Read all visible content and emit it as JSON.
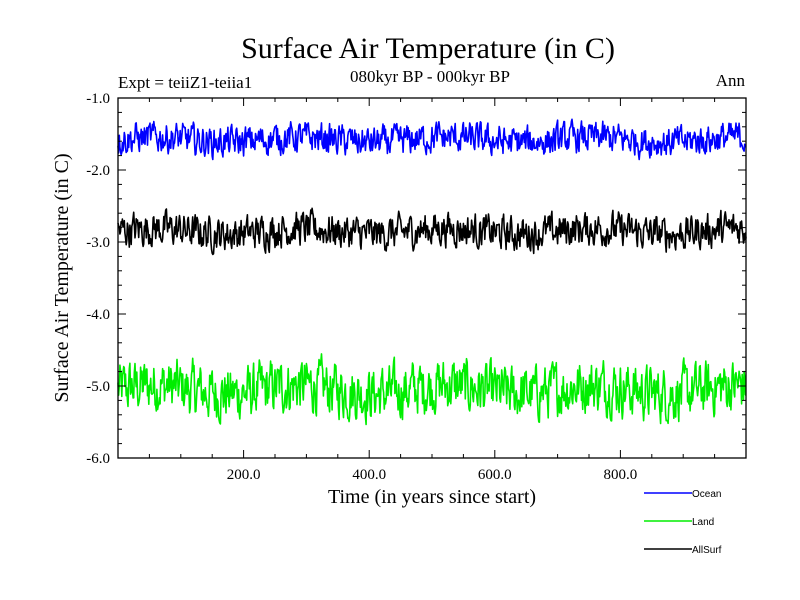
{
  "chart_data": {
    "type": "line",
    "title": "Surface Air Temperature (in C)",
    "subtitle": "080kyr BP - 000kyr BP",
    "experiment_label": "Expt = teiiZ1-teiia1",
    "season_label": "Ann",
    "xlabel": "Time (in years since start)",
    "ylabel": "Surface Air Temperature (in C)",
    "xlim": [
      0,
      1000
    ],
    "ylim": [
      -6.0,
      -1.0
    ],
    "x_ticks": [
      200,
      400,
      600,
      800
    ],
    "x_tick_labels": [
      "200.0",
      "400.0",
      "600.0",
      "800.0"
    ],
    "y_ticks": [
      -1.0,
      -2.0,
      -3.0,
      -4.0,
      -5.0,
      -6.0
    ],
    "y_tick_labels": [
      "-1.0",
      "-2.0",
      "-3.0",
      "-4.0",
      "-5.0",
      "-6.0"
    ],
    "grid": false,
    "legend_position": "bottom-right",
    "series": [
      {
        "name": "Ocean",
        "color": "#0000ff",
        "mean": -1.58,
        "min": -2.0,
        "max": -1.15
      },
      {
        "name": "Land",
        "color": "#00ee00",
        "mean": -5.05,
        "min": -5.85,
        "max": -4.35
      },
      {
        "name": "AllSurf",
        "color": "#000000",
        "mean": -2.85,
        "min": -3.3,
        "max": -2.35
      }
    ]
  }
}
